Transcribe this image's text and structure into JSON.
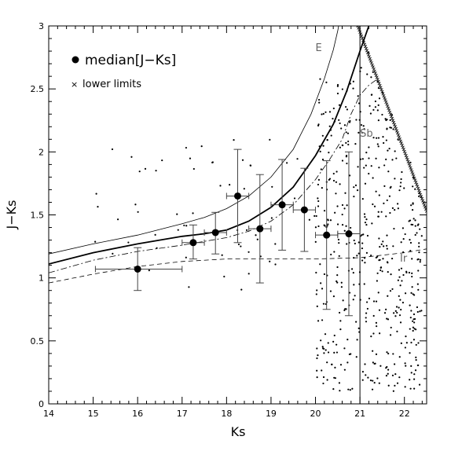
{
  "chart_data": {
    "type": "scatter",
    "xlabel": "Ks",
    "ylabel": "J−Ks",
    "xlim": [
      14,
      22.5
    ],
    "ylim": [
      0,
      3
    ],
    "x_ticks": [
      14,
      15,
      16,
      17,
      18,
      19,
      20,
      21,
      22
    ],
    "y_ticks": [
      0,
      0.5,
      1,
      1.5,
      2,
      2.5,
      3
    ],
    "y_tick_labels": [
      "0",
      "0.5",
      "1",
      "1.5",
      "2",
      "2.5",
      "3"
    ],
    "grid": false,
    "legend_position": "top-left",
    "legend": [
      {
        "marker": "filled-circle",
        "label": "median[J−Ks]"
      },
      {
        "marker": "cross",
        "label": "lower limits"
      }
    ],
    "vertical_line_x": 21,
    "median_series": {
      "label": "median[J−Ks]",
      "points": [
        {
          "x": 16.0,
          "y": 1.07,
          "xerr": [
            0.95,
            1.0
          ],
          "yerr": [
            0.17,
            0.17
          ]
        },
        {
          "x": 17.25,
          "y": 1.28,
          "xerr": [
            0.25,
            0.25
          ],
          "yerr": [
            0.13,
            0.14
          ]
        },
        {
          "x": 17.75,
          "y": 1.36,
          "xerr": [
            0.25,
            0.25
          ],
          "yerr": [
            0.17,
            0.16
          ]
        },
        {
          "x": 18.25,
          "y": 1.65,
          "xerr": [
            0.25,
            0.25
          ],
          "yerr": [
            0.37,
            0.37
          ]
        },
        {
          "x": 18.75,
          "y": 1.39,
          "xerr": [
            0.25,
            0.25
          ],
          "yerr": [
            0.43,
            0.43
          ]
        },
        {
          "x": 19.25,
          "y": 1.58,
          "xerr": [
            0.25,
            0.25
          ],
          "yerr": [
            0.36,
            0.36
          ]
        },
        {
          "x": 19.75,
          "y": 1.54,
          "xerr": [
            0.25,
            0.25
          ],
          "yerr": [
            0.33,
            0.33
          ]
        },
        {
          "x": 20.25,
          "y": 1.34,
          "xerr": [
            0.25,
            0.25
          ],
          "yerr": [
            0.59,
            0.59
          ]
        },
        {
          "x": 20.75,
          "y": 1.35,
          "xerr": [
            0.25,
            0.25
          ],
          "yerr": [
            0.65,
            0.65
          ]
        }
      ]
    },
    "model_tracks": [
      {
        "name": "E",
        "style": "thin",
        "label_at": [
          20.0,
          2.8
        ],
        "points": [
          [
            14,
            1.19
          ],
          [
            15,
            1.27
          ],
          [
            16,
            1.34
          ],
          [
            17,
            1.43
          ],
          [
            17.5,
            1.48
          ],
          [
            18,
            1.55
          ],
          [
            18.5,
            1.65
          ],
          [
            19,
            1.8
          ],
          [
            19.5,
            2.02
          ],
          [
            19.9,
            2.3
          ],
          [
            20.2,
            2.58
          ],
          [
            20.4,
            2.81
          ],
          [
            20.5,
            2.96
          ],
          [
            20.52,
            3.0
          ]
        ]
      },
      {
        "name": "",
        "style": "thick",
        "points": [
          [
            14,
            1.11
          ],
          [
            15,
            1.2
          ],
          [
            16,
            1.27
          ],
          [
            17,
            1.33
          ],
          [
            17.5,
            1.35
          ],
          [
            18,
            1.38
          ],
          [
            18.5,
            1.45
          ],
          [
            19,
            1.56
          ],
          [
            19.5,
            1.72
          ],
          [
            20,
            1.97
          ],
          [
            20.4,
            2.22
          ],
          [
            20.7,
            2.48
          ],
          [
            21,
            2.8
          ],
          [
            21.2,
            3.0
          ]
        ]
      },
      {
        "name": "Sb",
        "style": "dash-dot",
        "label_at": [
          21.0,
          2.12
        ],
        "points": [
          [
            14,
            1.04
          ],
          [
            15,
            1.14
          ],
          [
            16,
            1.21
          ],
          [
            17,
            1.26
          ],
          [
            17.5,
            1.29
          ],
          [
            18,
            1.32
          ],
          [
            18.5,
            1.37
          ],
          [
            19,
            1.45
          ],
          [
            19.5,
            1.58
          ],
          [
            20,
            1.78
          ],
          [
            20.3,
            1.93
          ],
          [
            20.6,
            2.1
          ],
          [
            20.8,
            2.3
          ],
          [
            21.0,
            2.45
          ],
          [
            21.2,
            2.53
          ],
          [
            21.4,
            2.58
          ]
        ]
      },
      {
        "name": "Ir",
        "style": "dashed",
        "label_at": [
          21.9,
          1.13
        ],
        "points": [
          [
            14,
            0.96
          ],
          [
            15,
            1.03
          ],
          [
            16,
            1.09
          ],
          [
            17,
            1.13
          ],
          [
            18,
            1.15
          ],
          [
            19,
            1.15
          ],
          [
            20,
            1.15
          ],
          [
            21,
            1.16
          ],
          [
            22,
            1.2
          ],
          [
            22.5,
            1.23
          ]
        ]
      }
    ],
    "lower_limits_line": {
      "from": [
        20.95,
        3.0
      ],
      "to": [
        22.5,
        1.53
      ]
    },
    "scatter": {
      "description": "individual sources (small dots), denser toward Ks > 20",
      "points": []
    }
  }
}
